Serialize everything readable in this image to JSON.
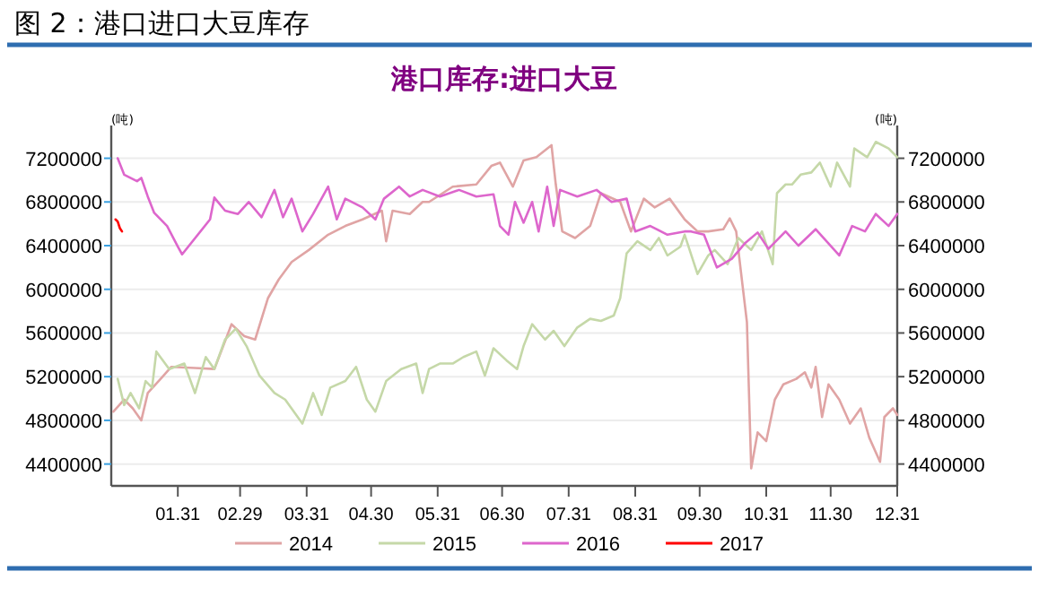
{
  "chart_data": {
    "type": "line",
    "title": "图 2：港口进口大豆库存",
    "subtitle": "港口库存:进口大豆",
    "ylabel": "(吨)",
    "y2label": "(吨)",
    "xlim": [
      "--01-01",
      "--12-31"
    ],
    "xticks": [
      {
        "value": "--01-31",
        "label": "01.31"
      },
      {
        "value": "--02-29",
        "label": "02.29"
      },
      {
        "value": "--03-31",
        "label": "03.31"
      },
      {
        "value": "--04-30",
        "label": "04.30"
      },
      {
        "value": "--05-31",
        "label": "05.31"
      },
      {
        "value": "--06-30",
        "label": "06.30"
      },
      {
        "value": "--07-31",
        "label": "07.31"
      },
      {
        "value": "--08-31",
        "label": "08.31"
      },
      {
        "value": "--09-30",
        "label": "09.30"
      },
      {
        "value": "--10-31",
        "label": "10.31"
      },
      {
        "value": "--11-30",
        "label": "11.30"
      },
      {
        "value": "--12-31",
        "label": "12.31"
      }
    ],
    "ylim": [
      4200000,
      7500000
    ],
    "yticks": [
      4400000,
      4800000,
      5200000,
      5600000,
      6000000,
      6400000,
      6800000,
      7200000
    ],
    "y2lim": [
      4200000,
      7500000
    ],
    "y2ticks": [
      4400000,
      4800000,
      5200000,
      5600000,
      6000000,
      6400000,
      6800000,
      7200000
    ],
    "grid": "y",
    "legend": "bottom",
    "line_style": "solid",
    "marker": "none",
    "series": [
      {
        "name": "2014",
        "color": "#e0a4a4",
        "x": [
          "--01-01",
          "--01-06",
          "--01-10",
          "--01-14",
          "--01-17",
          "--01-23",
          "--01-28",
          "--02-08",
          "--02-17",
          "--02-25",
          "--03-02",
          "--03-07",
          "--03-13",
          "--03-18",
          "--03-24",
          "--04-01",
          "--04-10",
          "--04-18",
          "--04-26",
          "--05-05",
          "--05-07",
          "--05-10",
          "--05-18",
          "--05-24",
          "--05-27",
          "--06-07",
          "--06-18",
          "--06-25",
          "--06-29",
          "--07-05",
          "--07-10",
          "--07-16",
          "--07-23",
          "--07-25",
          "--07-28",
          "--08-03",
          "--08-10",
          "--08-15",
          "--08-24",
          "--08-29",
          "--09-04",
          "--09-09",
          "--09-16",
          "--09-23",
          "--09-29",
          "--10-04",
          "--10-11",
          "--10-14",
          "--10-17",
          "--10-20",
          "--10-22",
          "--10-24",
          "--10-27",
          "--10-31",
          "--11-04",
          "--11-08",
          "--11-14",
          "--11-18",
          "--11-21",
          "--11-23",
          "--11-26",
          "--11-29",
          "--12-04",
          "--12-09",
          "--12-14",
          "--12-18",
          "--12-23",
          "--12-25",
          "--12-29",
          "--12-31"
        ],
        "values": [
          4880000,
          4990000,
          4910000,
          4800000,
          5050000,
          5180000,
          5290000,
          5280000,
          5270000,
          5680000,
          5570000,
          5540000,
          5920000,
          6090000,
          6250000,
          6360000,
          6500000,
          6580000,
          6640000,
          6720000,
          6440000,
          6720000,
          6690000,
          6800000,
          6800000,
          6940000,
          6960000,
          7130000,
          7160000,
          6940000,
          7180000,
          7210000,
          7320000,
          6960000,
          6530000,
          6470000,
          6580000,
          6880000,
          6800000,
          6530000,
          6830000,
          6750000,
          6830000,
          6640000,
          6530000,
          6530000,
          6550000,
          6650000,
          6530000,
          6030000,
          5700000,
          4360000,
          4690000,
          4610000,
          4990000,
          5130000,
          5180000,
          5240000,
          5100000,
          5290000,
          4830000,
          5130000,
          4990000,
          4770000,
          4910000,
          4640000,
          4420000,
          4830000,
          4910000,
          4850000
        ]
      },
      {
        "name": "2015",
        "color": "#c5d8a8",
        "x": [
          "--01-03",
          "--01-06",
          "--01-09",
          "--01-13",
          "--01-16",
          "--01-19",
          "--01-21",
          "--01-27",
          "--02-03",
          "--02-08",
          "--02-13",
          "--02-17",
          "--02-22",
          "--02-27",
          "--03-03",
          "--03-09",
          "--03-16",
          "--03-21",
          "--03-29",
          "--04-03",
          "--04-07",
          "--04-11",
          "--04-18",
          "--04-23",
          "--04-28",
          "--05-02",
          "--05-07",
          "--05-14",
          "--05-21",
          "--05-24",
          "--05-27",
          "--06-01",
          "--06-07",
          "--06-12",
          "--06-18",
          "--06-22",
          "--06-26",
          "--07-02",
          "--07-07",
          "--07-10",
          "--07-14",
          "--07-20",
          "--07-24",
          "--07-29",
          "--08-04",
          "--08-10",
          "--08-15",
          "--08-21",
          "--08-24",
          "--08-27",
          "--09-01",
          "--09-07",
          "--09-11",
          "--09-15",
          "--09-21",
          "--09-23",
          "--09-29",
          "--10-04",
          "--10-07",
          "--10-13",
          "--10-18",
          "--10-24",
          "--10-29",
          "--11-03",
          "--11-05",
          "--11-09",
          "--11-12",
          "--11-16",
          "--11-21",
          "--11-25",
          "--11-30",
          "--12-03",
          "--12-09",
          "--12-11",
          "--12-17",
          "--12-21",
          "--12-27",
          "--12-31"
        ],
        "values": [
          5180000,
          4940000,
          5050000,
          4910000,
          5160000,
          5100000,
          5430000,
          5270000,
          5320000,
          5050000,
          5380000,
          5270000,
          5540000,
          5640000,
          5480000,
          5210000,
          5050000,
          4990000,
          4770000,
          5050000,
          4850000,
          5100000,
          5160000,
          5290000,
          4990000,
          4880000,
          5160000,
          5270000,
          5320000,
          5050000,
          5270000,
          5320000,
          5320000,
          5380000,
          5430000,
          5210000,
          5460000,
          5350000,
          5270000,
          5480000,
          5680000,
          5540000,
          5620000,
          5480000,
          5650000,
          5730000,
          5710000,
          5760000,
          5920000,
          6330000,
          6440000,
          6360000,
          6470000,
          6310000,
          6390000,
          6500000,
          6140000,
          6310000,
          6360000,
          6230000,
          6470000,
          6360000,
          6530000,
          6230000,
          6880000,
          6960000,
          6960000,
          7050000,
          7070000,
          7160000,
          6940000,
          7160000,
          6940000,
          7290000,
          7210000,
          7350000,
          7290000,
          7210000
        ]
      },
      {
        "name": "2016",
        "color": "#dd66cc",
        "x": [
          "--01-03",
          "--01-06",
          "--01-12",
          "--01-14",
          "--01-17",
          "--01-20",
          "--01-26",
          "--01-31",
          "--02-02",
          "--02-15",
          "--02-17",
          "--02-22",
          "--02-28",
          "--03-04",
          "--03-10",
          "--03-16",
          "--03-20",
          "--03-24",
          "--03-29",
          "--04-03",
          "--04-10",
          "--04-14",
          "--04-18",
          "--04-26",
          "--05-02",
          "--05-06",
          "--05-13",
          "--05-18",
          "--05-24",
          "--06-01",
          "--06-10",
          "--06-18",
          "--06-26",
          "--06-29",
          "--07-03",
          "--07-06",
          "--07-10",
          "--07-14",
          "--07-17",
          "--07-21",
          "--07-24",
          "--07-27",
          "--08-04",
          "--08-13",
          "--08-20",
          "--08-27",
          "--08-31",
          "--09-07",
          "--09-15",
          "--09-23",
          "--09-26",
          "--10-02",
          "--10-08",
          "--10-15",
          "--10-21",
          "--10-27",
          "--11-01",
          "--11-09",
          "--11-15",
          "--11-23",
          "--12-04",
          "--12-10",
          "--12-16",
          "--12-21",
          "--12-27",
          "--12-31"
        ],
        "values": [
          7200000,
          7050000,
          6990000,
          7020000,
          6850000,
          6700000,
          6580000,
          6390000,
          6320000,
          6640000,
          6840000,
          6720000,
          6690000,
          6800000,
          6660000,
          6910000,
          6660000,
          6830000,
          6530000,
          6690000,
          6940000,
          6640000,
          6830000,
          6750000,
          6640000,
          6830000,
          6940000,
          6850000,
          6910000,
          6850000,
          6910000,
          6850000,
          6870000,
          6580000,
          6500000,
          6800000,
          6610000,
          6800000,
          6530000,
          6940000,
          6580000,
          6910000,
          6850000,
          6910000,
          6800000,
          6830000,
          6530000,
          6580000,
          6500000,
          6530000,
          6530000,
          6500000,
          6200000,
          6280000,
          6420000,
          6520000,
          6370000,
          6530000,
          6400000,
          6550000,
          6310000,
          6580000,
          6530000,
          6690000,
          6580000,
          6690000
        ]
      },
      {
        "name": "2017",
        "color": "#ff0000",
        "x": [
          "--01-02",
          "--01-03",
          "--01-04",
          "--01-05"
        ],
        "values": [
          6640000,
          6620000,
          6560000,
          6530000
        ]
      }
    ]
  }
}
